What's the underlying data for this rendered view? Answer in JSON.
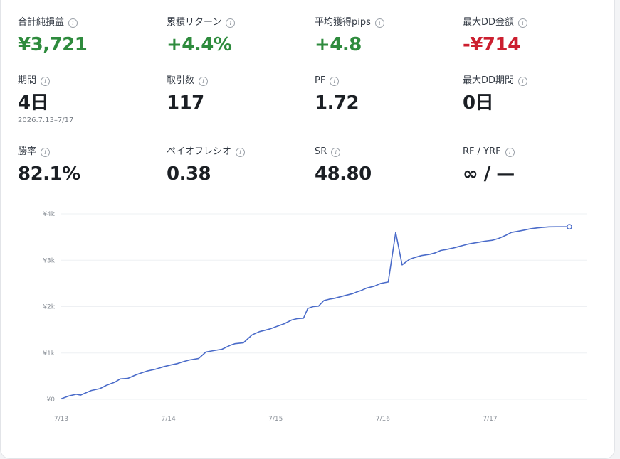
{
  "metrics": [
    {
      "label": "合計純損益",
      "value": "¥3,721",
      "tone": "pos"
    },
    {
      "label": "累積リターン",
      "value": "+4.4%",
      "tone": "pos"
    },
    {
      "label": "平均獲得pips",
      "value": "+4.8",
      "tone": "pos"
    },
    {
      "label": "最大DD金額",
      "value": "-¥714",
      "tone": "neg"
    },
    {
      "label": "期間",
      "value": "4日",
      "tone": "neutral",
      "sub": "2026.7.13–7/17"
    },
    {
      "label": "取引数",
      "value": "117",
      "tone": "neutral"
    },
    {
      "label": "PF",
      "value": "1.72",
      "tone": "neutral"
    },
    {
      "label": "最大DD期間",
      "value": "0日",
      "tone": "neutral"
    },
    {
      "label": "勝率",
      "value": "82.1%",
      "tone": "neutral"
    },
    {
      "label": "ペイオフレシオ",
      "value": "0.38",
      "tone": "neutral"
    },
    {
      "label": "SR",
      "value": "48.80",
      "tone": "neutral"
    },
    {
      "label": "RF / YRF",
      "value": "∞ / —",
      "tone": "neutral"
    }
  ],
  "info_icon": "info-icon",
  "chart_data": {
    "type": "line",
    "title": "",
    "xlabel": "",
    "ylabel": "",
    "x_ticks": [
      "7/13",
      "7/14",
      "7/15",
      "7/16",
      "7/17"
    ],
    "y_ticks": [
      "¥0",
      "¥1k",
      "¥2k",
      "¥3k",
      "¥4k"
    ],
    "ylim": [
      0,
      4000
    ],
    "xlim": [
      0,
      4.9
    ],
    "grid": true,
    "line_color": "#4a6bc9",
    "series": [
      {
        "x": [
          0,
          0.07,
          0.14,
          0.18,
          0.22,
          0.28,
          0.36,
          0.42,
          0.5,
          0.55,
          0.62,
          0.7,
          0.75,
          0.8,
          0.88,
          0.95,
          1.02,
          1.08,
          1.15,
          1.2,
          1.28,
          1.35,
          1.42,
          1.5,
          1.58,
          1.62,
          1.7,
          1.78,
          1.85,
          1.9,
          1.95,
          2.02,
          2.08,
          2.15,
          2.2,
          2.26,
          2.3,
          2.35,
          2.4,
          2.45,
          2.5,
          2.55,
          2.6,
          2.65,
          2.72,
          2.75,
          2.8,
          2.85,
          2.92,
          2.98,
          3.05,
          3.12,
          3.18,
          3.25,
          3.3,
          3.36,
          3.44,
          3.49,
          3.54,
          3.59,
          3.65,
          3.7,
          3.75,
          3.8,
          3.85,
          3.9,
          3.95,
          4.02,
          4.08,
          4.15,
          4.2,
          4.25,
          4.32,
          4.38,
          4.45,
          4.5,
          4.55,
          4.62,
          4.68,
          4.74
        ],
        "y": [
          10,
          70,
          110,
          90,
          130,
          190,
          230,
          300,
          370,
          440,
          450,
          530,
          570,
          610,
          650,
          700,
          740,
          770,
          820,
          850,
          880,
          1020,
          1050,
          1080,
          1170,
          1200,
          1220,
          1390,
          1460,
          1490,
          1520,
          1580,
          1630,
          1710,
          1740,
          1750,
          1960,
          2000,
          2010,
          2130,
          2160,
          2180,
          2210,
          2240,
          2280,
          2310,
          2350,
          2400,
          2440,
          2500,
          2530,
          3600,
          2900,
          3020,
          3060,
          3100,
          3130,
          3160,
          3210,
          3230,
          3260,
          3290,
          3320,
          3350,
          3370,
          3390,
          3410,
          3430,
          3470,
          3540,
          3600,
          3620,
          3650,
          3680,
          3700,
          3710,
          3720,
          3721,
          3721,
          3721
        ]
      }
    ]
  }
}
